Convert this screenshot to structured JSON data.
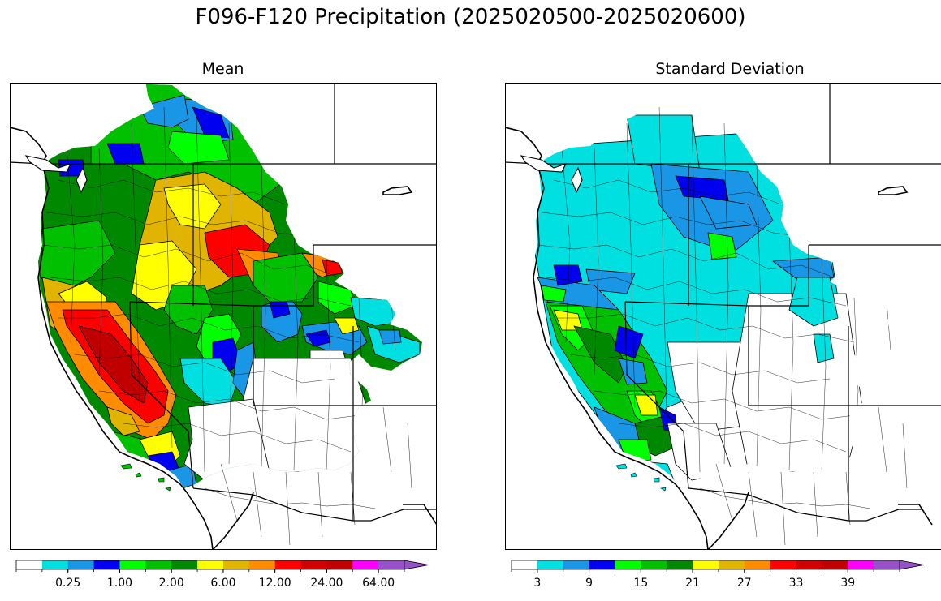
{
  "title": "F096-F120 Precipitation (2025020500-2025020600)",
  "panels": [
    {
      "title": "Mean",
      "colorbar": {
        "colors": [
          "#ffffff",
          "#00e0e0",
          "#1a96e6",
          "#0000f0",
          "#00ff00",
          "#00c000",
          "#008800",
          "#ffff00",
          "#e0b400",
          "#ff8c00",
          "#ff0000",
          "#d00000",
          "#c00000",
          "#ff00ff",
          "#9650c8"
        ],
        "tick_labels": [
          "0.25",
          "1.00",
          "2.00",
          "6.00",
          "12.00",
          "24.00",
          "64.00"
        ],
        "tick_label_positions": [
          2,
          4,
          6,
          8,
          10,
          12,
          14
        ],
        "extend": "max"
      }
    },
    {
      "title": "Standard Deviation",
      "colorbar": {
        "colors": [
          "#ffffff",
          "#00e0e0",
          "#1a96e6",
          "#0000f0",
          "#00ff00",
          "#00c000",
          "#008800",
          "#ffff00",
          "#e0b400",
          "#ff8c00",
          "#ff0000",
          "#d00000",
          "#c00000",
          "#ff00ff",
          "#9650c8"
        ],
        "tick_labels": [
          "3",
          "9",
          "15",
          "21",
          "27",
          "33",
          "39"
        ],
        "tick_label_positions": [
          1,
          3,
          5,
          7,
          9,
          11,
          13
        ],
        "extend": "max"
      }
    }
  ]
}
